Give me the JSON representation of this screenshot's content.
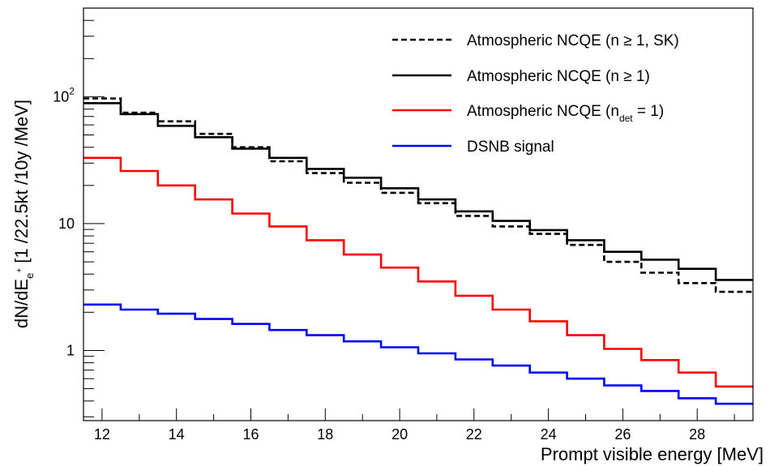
{
  "chart_data": {
    "type": "line",
    "step": true,
    "xlabel": "Prompt visible energy [MeV]",
    "ylabel": {
      "main": "dN/dE",
      "sub": "e",
      "sup": "+",
      "rest": " [1 /22.5kt /10y /MeV]"
    },
    "xlim": [
      11.5,
      29.5
    ],
    "ylim": [
      0.28,
      500
    ],
    "yscale": "log",
    "bin_edges": [
      11.5,
      12.5,
      13.5,
      14.5,
      15.5,
      16.5,
      17.5,
      18.5,
      19.5,
      20.5,
      21.5,
      22.5,
      23.5,
      24.5,
      25.5,
      26.5,
      27.5,
      28.5,
      29.5
    ],
    "x_ticks": [
      "12",
      "14",
      "16",
      "18",
      "20",
      "22",
      "24",
      "26",
      "28"
    ],
    "y_ticks": [
      {
        "value": 1,
        "base": "1",
        "exp": ""
      },
      {
        "value": 10,
        "base": "10",
        "exp": ""
      },
      {
        "value": 100,
        "base": "10",
        "exp": "2"
      }
    ],
    "legend_position": "top-right",
    "series": [
      {
        "key": "sk",
        "legend": {
          "main": "Atmospheric NCQE (n ≥ 1, SK)",
          "sub": ""
        },
        "color": "#000000",
        "dashed": true,
        "values": [
          97,
          75,
          64,
          51,
          40,
          31,
          25,
          21,
          17.5,
          14.5,
          11.5,
          9.5,
          8.3,
          6.8,
          5.0,
          4.1,
          3.4,
          2.9
        ]
      },
      {
        "key": "n1",
        "legend": {
          "main": "Atmospheric NCQE (n ≥ 1)",
          "sub": ""
        },
        "color": "#000000",
        "dashed": false,
        "values": [
          89,
          73,
          59,
          48,
          39,
          33,
          27,
          23,
          19,
          15.5,
          12.5,
          10.5,
          8.9,
          7.4,
          6.0,
          5.2,
          4.4,
          3.6
        ]
      },
      {
        "key": "ndet",
        "legend": {
          "main": "Atmospheric NCQE (n",
          "sub": "det",
          "rest": " = 1)"
        },
        "color": "#ff0000",
        "dashed": false,
        "values": [
          33,
          26,
          20,
          15.5,
          12,
          9.5,
          7.4,
          5.7,
          4.5,
          3.5,
          2.7,
          2.1,
          1.7,
          1.32,
          1.03,
          0.84,
          0.67,
          0.52
        ]
      },
      {
        "key": "dsnb",
        "legend": {
          "main": "DSNB signal",
          "sub": ""
        },
        "color": "#0000ff",
        "dashed": false,
        "values": [
          2.3,
          2.1,
          1.95,
          1.77,
          1.62,
          1.45,
          1.32,
          1.18,
          1.06,
          0.95,
          0.85,
          0.76,
          0.67,
          0.6,
          0.53,
          0.48,
          0.42,
          0.38
        ]
      }
    ]
  }
}
